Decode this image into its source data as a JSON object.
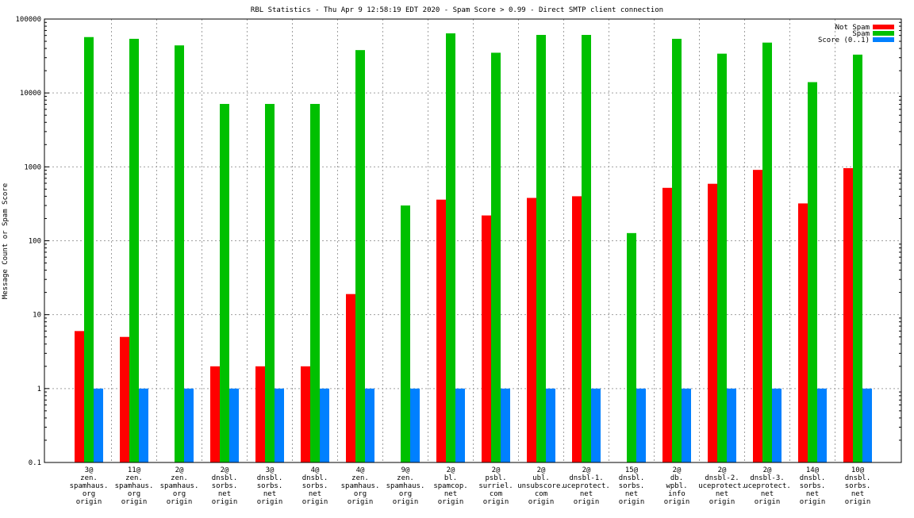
{
  "chart_data": {
    "type": "bar",
    "title": "RBL Statistics - Thu Apr  9 12:58:19 EDT 2020 - Spam Score > 0.99 - Direct SMTP client connection",
    "xlabel": "",
    "ylabel": "Message Count or Spam Score",
    "yscale": "log",
    "ylim": [
      0.1,
      100000
    ],
    "yticks": [
      "0.1",
      "1",
      "10",
      "100",
      "1000",
      "10000",
      "100000"
    ],
    "grid": true,
    "legend_position": "top-right",
    "categories": [
      [
        "3@",
        "zen.",
        "spamhaus.",
        "org",
        "origin"
      ],
      [
        "11@",
        "zen.",
        "spamhaus.",
        "org",
        "origin"
      ],
      [
        "2@",
        "zen.",
        "spamhaus.",
        "org",
        "origin"
      ],
      [
        "2@",
        "dnsbl.",
        "sorbs.",
        "net",
        "origin"
      ],
      [
        "3@",
        "dnsbl.",
        "sorbs.",
        "net",
        "origin"
      ],
      [
        "4@",
        "dnsbl.",
        "sorbs.",
        "net",
        "origin"
      ],
      [
        "4@",
        "zen.",
        "spamhaus.",
        "org",
        "origin"
      ],
      [
        "9@",
        "zen.",
        "spamhaus.",
        "org",
        "origin"
      ],
      [
        "2@",
        "bl.",
        "spamcop.",
        "net",
        "origin"
      ],
      [
        "2@",
        "psbl.",
        "surriel.",
        "com",
        "origin"
      ],
      [
        "2@",
        "ubl.",
        "unsubscore.",
        "com",
        "origin"
      ],
      [
        "2@",
        "dnsbl-1.",
        "uceprotect.",
        "net",
        "origin"
      ],
      [
        "15@",
        "dnsbl.",
        "sorbs.",
        "net",
        "origin"
      ],
      [
        "2@",
        "db.",
        "wpbl.",
        "info",
        "origin"
      ],
      [
        "2@",
        "dnsbl-2.",
        "uceprotect.",
        "net",
        "origin"
      ],
      [
        "2@",
        "dnsbl-3.",
        "uceprotect.",
        "net",
        "origin"
      ],
      [
        "14@",
        "dnsbl.",
        "sorbs.",
        "net",
        "origin"
      ],
      [
        "10@",
        "dnsbl.",
        "sorbs.",
        "net",
        "origin"
      ]
    ],
    "series": [
      {
        "name": "Not Spam",
        "color": "#ff0000",
        "values": [
          6,
          5,
          null,
          2,
          2,
          2,
          19,
          null,
          360,
          220,
          380,
          400,
          null,
          520,
          590,
          910,
          320,
          960
        ]
      },
      {
        "name": "Spam",
        "color": "#00c000",
        "values": [
          57000,
          54000,
          44000,
          7100,
          7100,
          7100,
          38000,
          300,
          64000,
          35000,
          61000,
          61000,
          127,
          54000,
          34000,
          48000,
          14000,
          33000
        ]
      },
      {
        "name": "Score (0..1)",
        "color": "#0080ff",
        "values": [
          1,
          1,
          1,
          1,
          1,
          1,
          1,
          1,
          1,
          1,
          1,
          1,
          1,
          1,
          1,
          1,
          1,
          1
        ]
      }
    ]
  }
}
